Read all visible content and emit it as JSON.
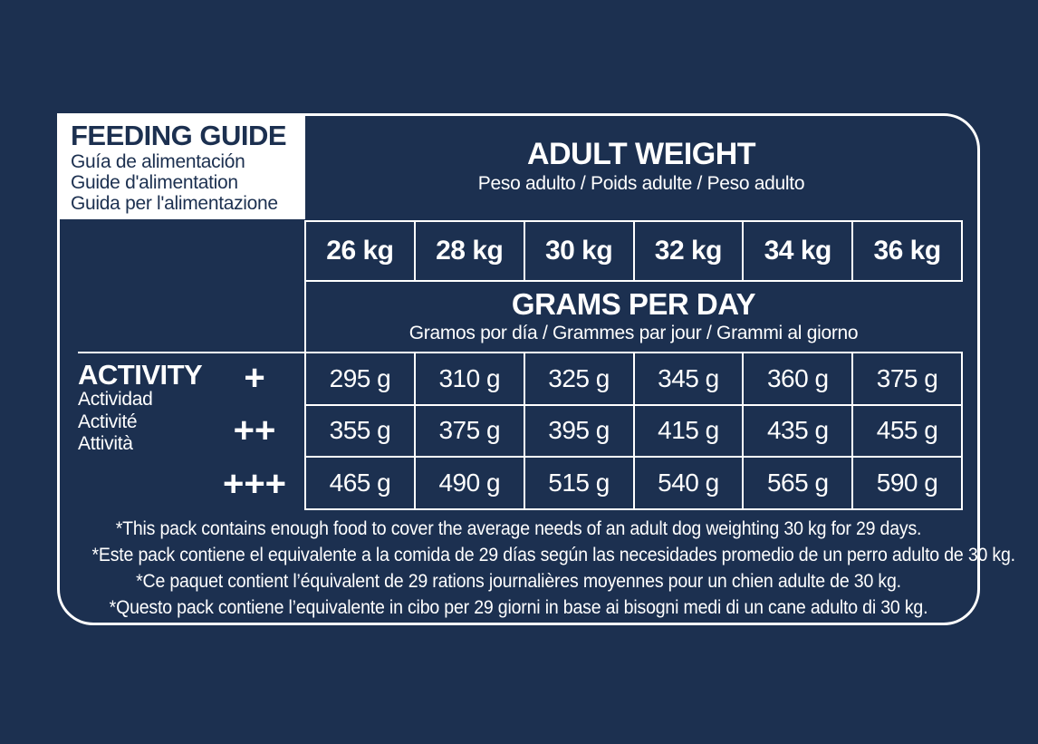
{
  "colors": {
    "background": "#1C3050",
    "panel_border": "#FFFFFF",
    "title_box_bg": "#FFFFFF",
    "title_box_text": "#1C3050",
    "text": "#FFFFFF"
  },
  "feeding_guide": {
    "title": "FEEDING GUIDE",
    "subtitles": [
      "Guía de alimentación",
      "Guide d'alimentation",
      "Guida per l'alimentazione"
    ]
  },
  "adult_weight": {
    "title": "ADULT WEIGHT",
    "subtitle": "Peso adulto / Poids adulte / Peso adulto"
  },
  "grams_per_day": {
    "title": "GRAMS PER DAY",
    "subtitle": "Gramos por día / Grammes par jour / Grammi al giorno"
  },
  "activity": {
    "title": "ACTIVITY",
    "subtitles": [
      "Actividad",
      "Activité",
      "Attività"
    ]
  },
  "table": {
    "type": "table",
    "columns": [
      "26 kg",
      "28 kg",
      "30 kg",
      "32 kg",
      "34 kg",
      "36 kg"
    ],
    "rows": [
      {
        "activity": "+",
        "values": [
          "295 g",
          "310 g",
          "325 g",
          "345 g",
          "360 g",
          "375 g"
        ]
      },
      {
        "activity": "++",
        "values": [
          "355 g",
          "375 g",
          "395 g",
          "415 g",
          "435 g",
          "455 g"
        ]
      },
      {
        "activity": "+++",
        "values": [
          "465 g",
          "490 g",
          "515 g",
          "540 g",
          "565 g",
          "590 g"
        ]
      }
    ]
  },
  "footnotes": [
    "*This pack contains enough food to cover the average needs of an adult dog weighting 30 kg for 29 days.",
    "*Este pack contiene el equivalente a la comida de 29 días según las necesidades promedio de un perro adulto de 30 kg.",
    "*Ce paquet contient l’équivalent de 29 rations journalières moyennes pour un chien adulte de 30 kg.",
    "*Questo pack contiene l’equivalente in cibo per 29 giorni in base ai bisogni medi di un cane adulto di 30 kg."
  ]
}
